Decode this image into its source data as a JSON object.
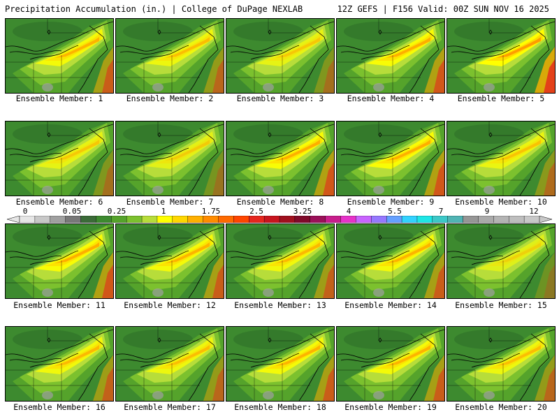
{
  "header": {
    "left": "Precipitation Accumulation (in.) | College of DuPage NEXLAB",
    "right": "12Z GEFS | F156 Valid: 00Z SUN NOV 16 2025"
  },
  "members": [
    {
      "label": "Ensemble Member: 1",
      "level": 0.55
    },
    {
      "label": "Ensemble Member: 2",
      "level": 0.45
    },
    {
      "label": "Ensemble Member: 3",
      "level": 0.35
    },
    {
      "label": "Ensemble Member: 4",
      "level": 0.6
    },
    {
      "label": "Ensemble Member: 5",
      "level": 0.8
    },
    {
      "label": "Ensemble Member: 6",
      "level": 0.35
    },
    {
      "label": "Ensemble Member: 7",
      "level": 0.3
    },
    {
      "label": "Ensemble Member: 8",
      "level": 0.6
    },
    {
      "label": "Ensemble Member: 9",
      "level": 0.6
    },
    {
      "label": "Ensemble Member: 10",
      "level": 0.4
    },
    {
      "label": "Ensemble Member: 11",
      "level": 0.6
    },
    {
      "label": "Ensemble Member: 12",
      "level": 0.55
    },
    {
      "label": "Ensemble Member: 13",
      "level": 0.5
    },
    {
      "label": "Ensemble Member: 14",
      "level": 0.55
    },
    {
      "label": "Ensemble Member: 15",
      "level": 0.25
    },
    {
      "label": "Ensemble Member: 16",
      "level": 0.5
    },
    {
      "label": "Ensemble Member: 17",
      "level": 0.45
    },
    {
      "label": "Ensemble Member: 18",
      "level": 0.55
    },
    {
      "label": "Ensemble Member: 19",
      "level": 0.55
    },
    {
      "label": "Ensemble Member: 20",
      "level": 0.45
    }
  ],
  "colorbar": {
    "labels": [
      "0",
      "0.05",
      "0.25",
      "1",
      "1.75",
      "2.5",
      "3.25",
      "4",
      "5.5",
      "7",
      "9",
      "12"
    ],
    "colors": [
      "#e6e6e6",
      "#c8c8c8",
      "#a0a0a0",
      "#787878",
      "#3b6b38",
      "#3d8a2f",
      "#55a32b",
      "#7cc12e",
      "#b7dd3a",
      "#ffff00",
      "#ffd700",
      "#ffb000",
      "#ff8c00",
      "#ff6a00",
      "#ff4500",
      "#e6261e",
      "#c8141e",
      "#a0101e",
      "#800a2a",
      "#9a1058",
      "#c81e8c",
      "#e632c8",
      "#c864ff",
      "#9678ff",
      "#64a0ff",
      "#32d2ff",
      "#1ee6e6",
      "#3cc8c8",
      "#50b4b4",
      "#969696",
      "#aaaaaa",
      "#b4b4b4",
      "#bebebe",
      "#c8c8c8"
    ]
  }
}
